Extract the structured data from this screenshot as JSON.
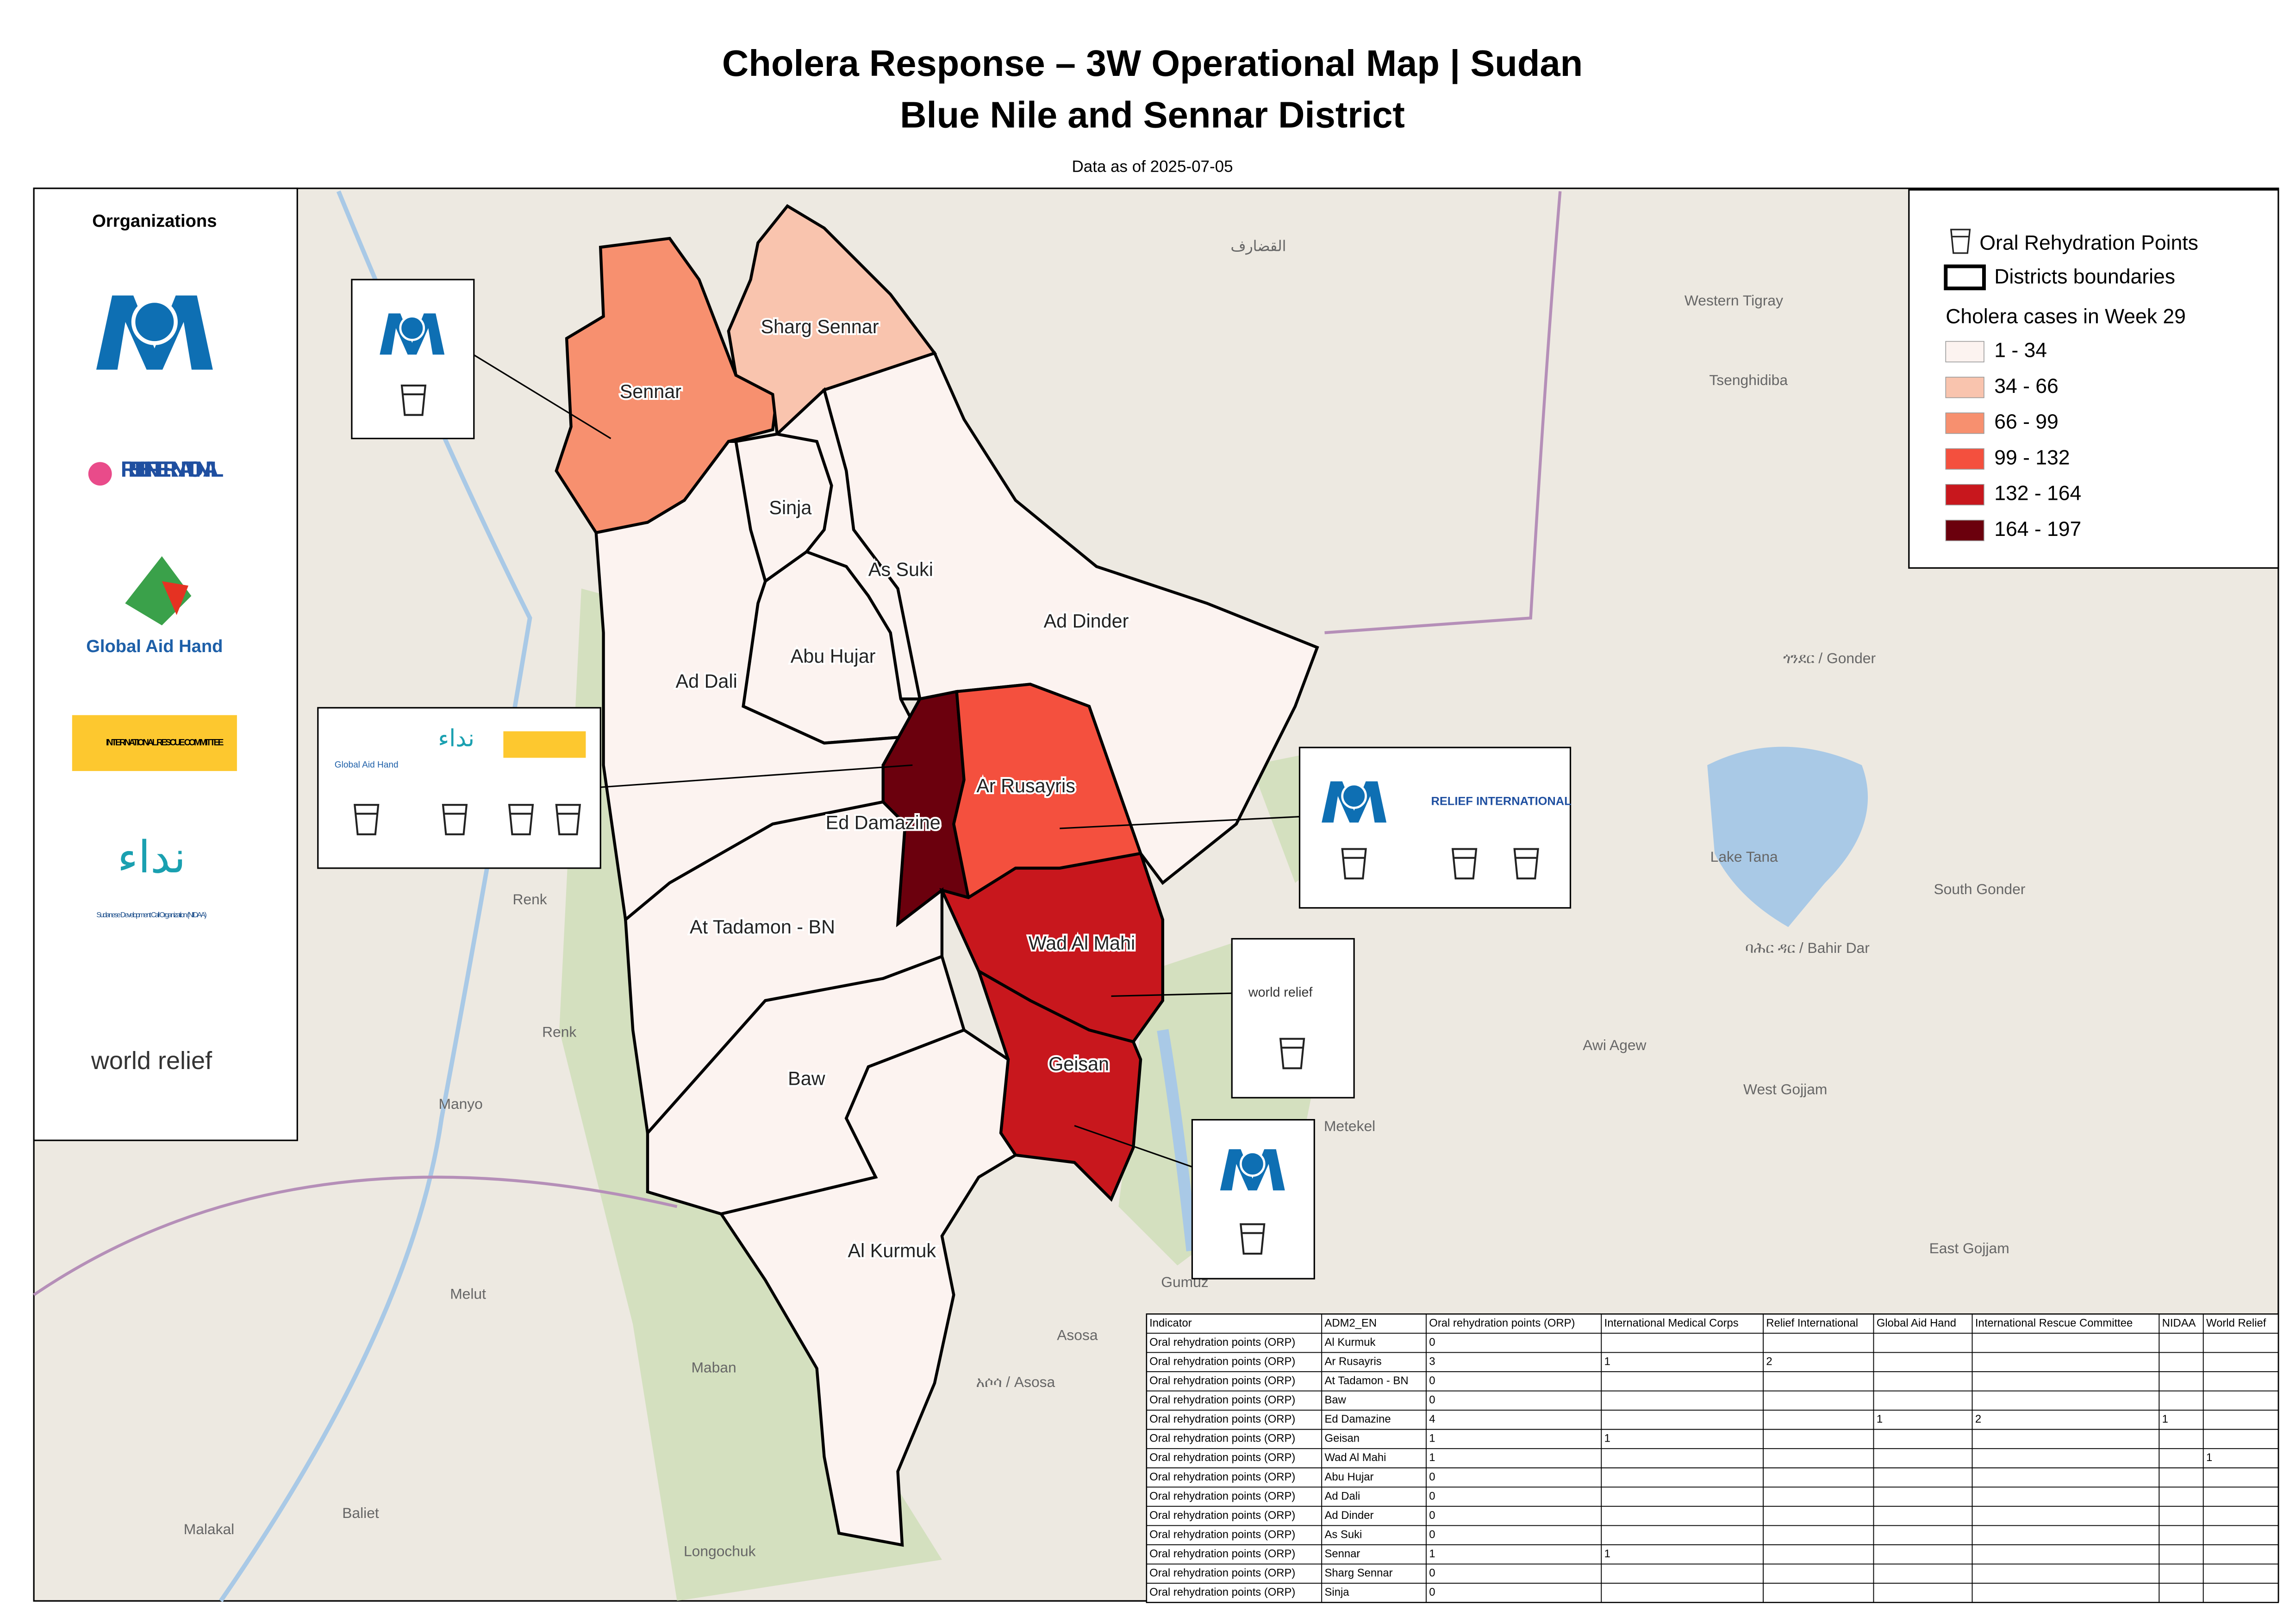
{
  "header": {
    "title": "Cholera Response – 3W Operational Map | Sudan",
    "subtitle": "Blue Nile and Sennar District",
    "date": "Data as of 2025-07-05"
  },
  "organizations": {
    "title": "Orrganizations",
    "logos": [
      "RELIEF INTERNATIONAL",
      "Global Aid Hand",
      "INTERNATIONAL RESCUE COMMITTEE",
      "Sudanese Development Call Organization (NIDAA)",
      "world relief"
    ]
  },
  "legend": {
    "orp": "Oral Rehydration Points",
    "boundaries": "Districts boundaries",
    "title": "Cholera cases in Week 29",
    "classes": [
      {
        "label": "1 - 34",
        "color": "#fcf3f0"
      },
      {
        "label": "34 - 66",
        "color": "#f9c4ae"
      },
      {
        "label": "66 - 99",
        "color": "#f7906f"
      },
      {
        "label": "99 - 132",
        "color": "#f4503e"
      },
      {
        "label": "132 - 164",
        "color": "#c8171d"
      },
      {
        "label": "164 - 197",
        "color": "#6b000d"
      }
    ]
  },
  "districts": [
    {
      "name": "Sennar",
      "color": "#f7906f"
    },
    {
      "name": "Sharg Sennar",
      "color": "#f9c4ae"
    },
    {
      "name": "Ad Dinder",
      "color": "#fcf3f0"
    },
    {
      "name": "Sinja",
      "color": "#fcf3f0"
    },
    {
      "name": "As Suki",
      "color": "#fcf3f0"
    },
    {
      "name": "Abu Hujar",
      "color": "#fcf3f0"
    },
    {
      "name": "Ad Dali",
      "color": "#fcf3f0"
    },
    {
      "name": "Ed Damazine",
      "color": "#6b000d"
    },
    {
      "name": "Ar Rusayris",
      "color": "#f4503e"
    },
    {
      "name": "At Tadamon - BN",
      "color": "#fcf3f0"
    },
    {
      "name": "Wad Al Mahi",
      "color": "#c8171d"
    },
    {
      "name": "Geisan",
      "color": "#c8171d"
    },
    {
      "name": "Baw",
      "color": "#fcf3f0"
    },
    {
      "name": "Al Kurmuk",
      "color": "#fcf3f0"
    }
  ],
  "places": [
    "القضارف",
    "Western Tigray",
    "Tsenghidiba",
    "ጎንደር / Gonder",
    "Lake Tana",
    "South Gonder",
    "ባሕር ዳር / Bahir Dar",
    "Awi Agew",
    "West Gojjam",
    "Metekel",
    "East Gojjam",
    "Renk",
    "Renk",
    "Manyo",
    "Melut",
    "Maban",
    "Asosa",
    "አሶሳ / Asosa",
    "Baliet",
    "Malakal",
    "Longochuk",
    "Gumuz"
  ],
  "table": {
    "header": [
      "Indicator",
      "ADM2_EN",
      "Oral rehydration points (ORP)",
      "International Medical Corps",
      "Relief International",
      "Global Aid Hand",
      "International Rescue Committee",
      "NIDAA",
      "World Relief"
    ],
    "rows": [
      [
        "Oral rehydration points (ORP)",
        "Al Kurmuk",
        0,
        null,
        null,
        null,
        null,
        null,
        null
      ],
      [
        "Oral rehydration points (ORP)",
        "Ar Rusayris",
        3,
        1,
        2,
        null,
        null,
        null,
        null
      ],
      [
        "Oral rehydration points (ORP)",
        "At Tadamon - BN",
        0,
        null,
        null,
        null,
        null,
        null,
        null
      ],
      [
        "Oral rehydration points (ORP)",
        "Baw",
        0,
        null,
        null,
        null,
        null,
        null,
        null
      ],
      [
        "Oral rehydration points (ORP)",
        "Ed Damazine",
        4,
        null,
        null,
        1,
        2,
        1,
        null
      ],
      [
        "Oral rehydration points (ORP)",
        "Geisan",
        1,
        1,
        null,
        null,
        null,
        null,
        null
      ],
      [
        "Oral rehydration points (ORP)",
        "Wad Al Mahi",
        1,
        null,
        null,
        null,
        null,
        null,
        1
      ],
      [
        "Oral rehydration points (ORP)",
        "Abu Hujar",
        0,
        null,
        null,
        null,
        null,
        null,
        null
      ],
      [
        "Oral rehydration points (ORP)",
        "Ad Dali",
        0,
        null,
        null,
        null,
        null,
        null,
        null
      ],
      [
        "Oral rehydration points (ORP)",
        "Ad Dinder",
        0,
        null,
        null,
        null,
        null,
        null,
        null
      ],
      [
        "Oral rehydration points (ORP)",
        "As Suki",
        0,
        null,
        null,
        null,
        null,
        null,
        null
      ],
      [
        "Oral rehydration points (ORP)",
        "Sennar",
        1,
        1,
        null,
        null,
        null,
        null,
        null
      ],
      [
        "Oral rehydration points (ORP)",
        "Sharg Sennar",
        0,
        null,
        null,
        null,
        null,
        null,
        null
      ],
      [
        "Oral rehydration points (ORP)",
        "Sinja",
        0,
        null,
        null,
        null,
        null,
        null,
        null
      ]
    ]
  }
}
